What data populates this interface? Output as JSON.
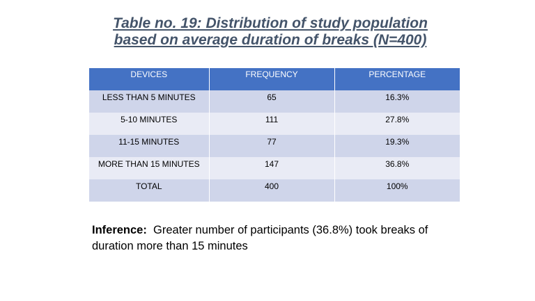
{
  "title": {
    "line1": "Table no. 19: Distribution of study population",
    "line2": "based on average duration of breaks (N=400)"
  },
  "table": {
    "headers": [
      "DEVICES",
      "FREQUENCY",
      "PERCENTAGE"
    ],
    "rows": [
      [
        "LESS THAN 5 MINUTES",
        "65",
        "16.3%"
      ],
      [
        "5-10 MINUTES",
        "111",
        "27.8%"
      ],
      [
        "11-15 MINUTES",
        "77",
        "19.3%"
      ],
      [
        "MORE THAN 15 MINUTES",
        "147",
        "36.8%"
      ],
      [
        "TOTAL",
        "400",
        "100%"
      ]
    ]
  },
  "inference": {
    "label": "Inference:",
    "text": "Greater number of participants (36.8%) took breaks of duration more than 15 minutes"
  },
  "colors": {
    "title": "#44546a",
    "header_bg": "#4472c4",
    "row_odd": "#cfd5ea",
    "row_even": "#e9ebf5"
  }
}
